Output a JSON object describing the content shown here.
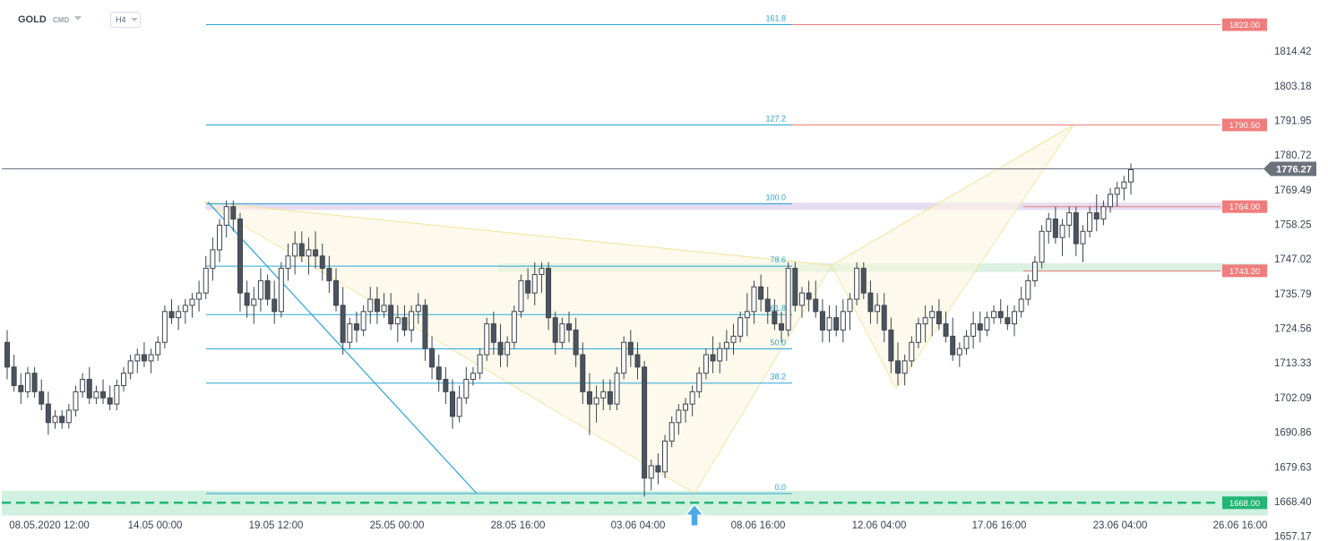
{
  "toolbar": {
    "symbol": "GOLD",
    "source": "CMD",
    "timeframe": "H4"
  },
  "chart_data": {
    "type": "candlestick",
    "y_axis": {
      "ticks": [
        "1814.42",
        "1803.18",
        "1791.95",
        "1780.72",
        "1769.49",
        "1758.25",
        "1747.02",
        "1735.79",
        "1724.56",
        "1713.33",
        "1702.09",
        "1690.86",
        "1679.63",
        "1668.40",
        "1657.17"
      ],
      "range": [
        1655.6,
        1831.0
      ]
    },
    "x_axis": {
      "ticks": [
        "08.05.2020 12:00",
        "14.05 00:00",
        "19.05 12:00",
        "25.05 00:00",
        "28.05 16:00",
        "03.06 04:00",
        "08.06 16:00",
        "12.06 04:00",
        "17.06 16:00",
        "23.06 04:00",
        "26.06 16:00"
      ]
    },
    "current_price": {
      "value": 1776.27,
      "label": "1776.27"
    },
    "price_levels": [
      {
        "value": 1823.0,
        "label": "1823.00",
        "color": "#f07d7d"
      },
      {
        "value": 1790.5,
        "label": "1790.50",
        "color": "#f07d7d"
      },
      {
        "value": 1764.0,
        "label": "1764.00",
        "color": "#f07d7d"
      },
      {
        "value": 1743.2,
        "label": "1743.20",
        "color": "#f07d7d"
      },
      {
        "value": 1668.0,
        "label": "1668.00",
        "color": "#22b573"
      }
    ],
    "fibonacci": [
      {
        "label": "161.8",
        "value": 1823.0
      },
      {
        "label": "127.2",
        "value": 1790.5
      },
      {
        "label": "100.0",
        "value": 1764.9
      },
      {
        "label": "78.6",
        "value": 1744.7
      },
      {
        "label": "61.8",
        "value": 1729.0
      },
      {
        "label": "50.0",
        "value": 1717.9
      },
      {
        "label": "38.2",
        "value": 1706.8
      },
      {
        "label": "0.0",
        "value": 1671.0
      }
    ],
    "zones": [
      {
        "name": "resistance-zone-1764",
        "top": 1765.3,
        "bottom": 1762.9,
        "color": "#e3d9f1"
      },
      {
        "name": "resistance-zone-1743",
        "top": 1745.6,
        "bottom": 1742.8,
        "color": "#d6f0e0"
      },
      {
        "name": "support-zone-1668",
        "top": 1671.9,
        "bottom": 1663.9,
        "color": "#cbeedd"
      }
    ],
    "harmonic_pattern": {
      "points": [
        [
          1765.5
        ],
        [
          1671.0
        ],
        [
          1745.0
        ],
        [
          1705.0
        ],
        [
          1790.5
        ]
      ]
    },
    "colors": {
      "fib": "#2aa6d6",
      "pattern": "#f2e6a5",
      "up": "#ffffff",
      "down": "#4b545e",
      "arrow": "#4aa8e8"
    }
  }
}
